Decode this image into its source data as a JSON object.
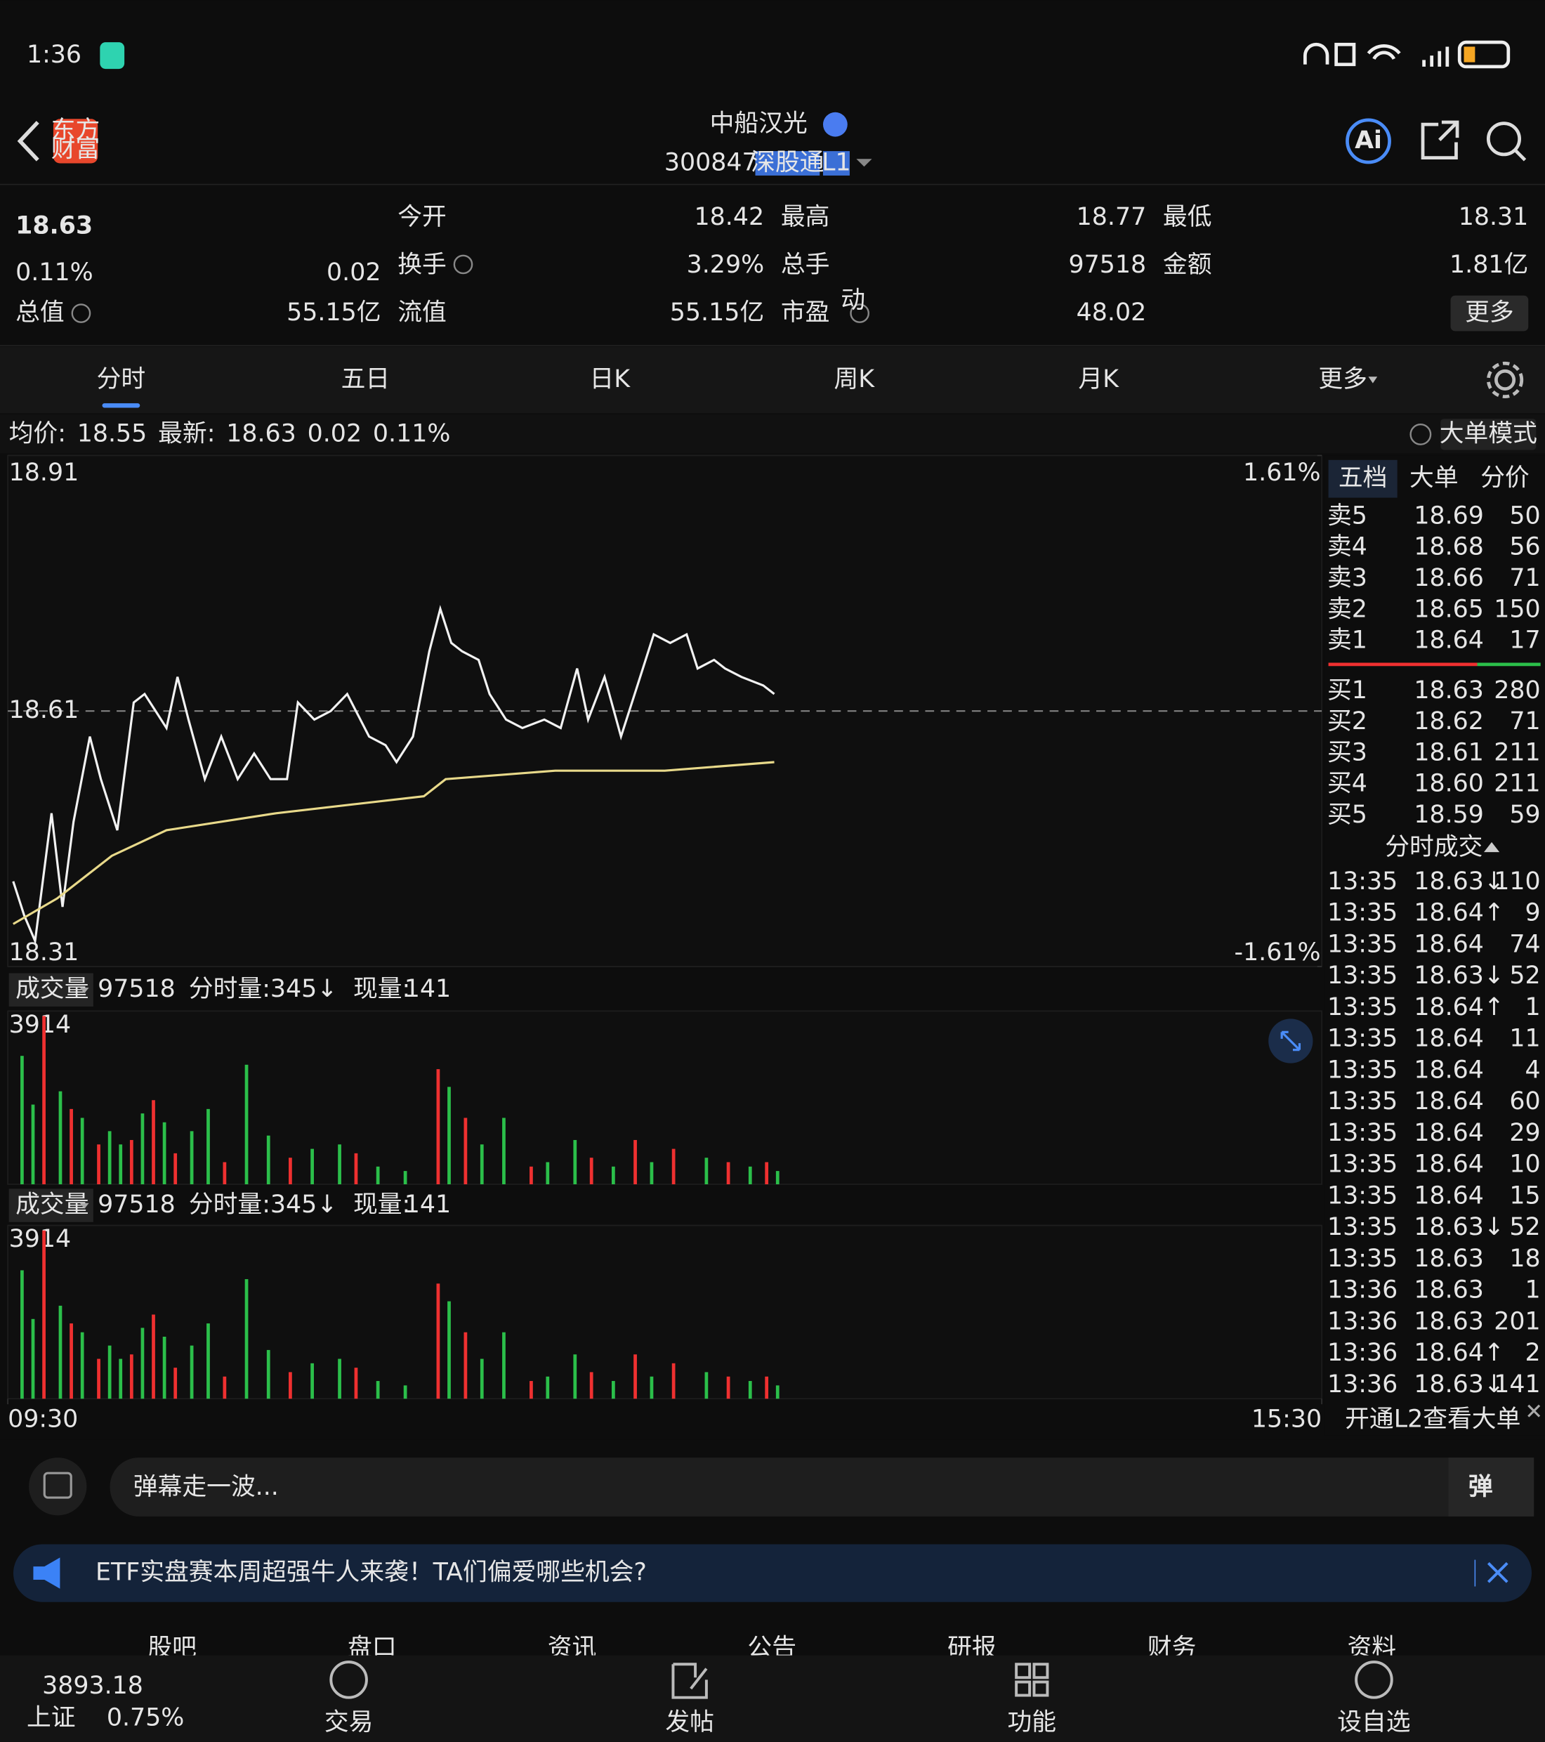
{
  "status_bar": {
    "time": "1:36"
  },
  "header": {
    "logo": [
      "东方",
      "财富"
    ],
    "name": "中船汉光",
    "code": "300847",
    "tag": "深股通",
    "level": "L1",
    "ai": "Ai"
  },
  "quote": {
    "price": "18.63",
    "change_pct": "0.11%",
    "change": "0.02",
    "pe_mark": "动",
    "more": "更多",
    "fields": [
      {
        "label": "今开",
        "value": "18.42",
        "color": "#2bbf4a"
      },
      {
        "label": "最高",
        "value": "18.77",
        "color": "#ef3030"
      },
      {
        "label": "最低",
        "value": "18.31",
        "color": "#2bbf4a"
      },
      {
        "label": "换手",
        "value": "3.29%",
        "color": "#e6e6e6"
      },
      {
        "label": "总手",
        "value": "97518",
        "color": "#e6e6e6"
      },
      {
        "label": "金额",
        "value": "1.81亿",
        "color": "#e6e6e6"
      },
      {
        "label": "总值",
        "value": "55.15亿",
        "color": "#e6e6e6"
      },
      {
        "label": "流值",
        "value": "55.15亿",
        "color": "#e6e6e6"
      },
      {
        "label": "市盈",
        "value": "48.02",
        "color": "#e6e6e6"
      }
    ]
  },
  "tabs": {
    "items": [
      "分时",
      "五日",
      "日K",
      "周K",
      "月K",
      "更多"
    ],
    "active": 0
  },
  "info": {
    "avg_label": "均价:",
    "avg": "18.55",
    "latest_label": "最新:",
    "latest": "18.63",
    "change": "0.02",
    "change_pct": "0.11%",
    "mode": "大单模式"
  },
  "chart_data": [
    {
      "type": "line",
      "ylim": [
        18.31,
        18.91
      ],
      "yticks": [
        18.91,
        18.61,
        18.31
      ],
      "y2lim": [
        -1.61,
        1.61
      ],
      "y2ticks": [
        {
          "value": 1.61,
          "label": "1.61%"
        },
        {
          "value": -1.61,
          "label": "-1.61%"
        }
      ],
      "xlim": [
        0,
        240
      ],
      "xticks": [
        {
          "value": 0,
          "label": "09:30"
        },
        {
          "value": 240,
          "label": "15:30"
        }
      ],
      "series": [
        {
          "color": "#f2f2f2",
          "x": [
            1,
            3,
            5,
            8,
            10,
            12,
            15,
            17,
            20,
            23,
            25,
            27,
            29,
            31,
            33,
            36,
            39,
            42,
            45,
            48,
            51,
            53,
            56,
            59,
            62,
            66,
            69,
            71,
            74,
            77,
            79,
            81,
            83,
            86,
            88,
            91,
            94,
            98,
            101,
            104,
            106,
            109,
            112,
            115,
            118,
            121,
            124,
            126,
            129,
            131,
            134,
            138,
            140
          ],
          "values": [
            18.41,
            18.37,
            18.34,
            18.49,
            18.38,
            18.48,
            18.58,
            18.53,
            18.47,
            18.62,
            18.63,
            18.61,
            18.59,
            18.65,
            18.6,
            18.53,
            18.58,
            18.53,
            18.56,
            18.53,
            18.53,
            18.62,
            18.6,
            18.61,
            18.63,
            18.58,
            18.57,
            18.55,
            18.58,
            18.68,
            18.73,
            18.69,
            18.68,
            18.67,
            18.63,
            18.6,
            18.59,
            18.6,
            18.59,
            18.66,
            18.6,
            18.65,
            18.58,
            18.64,
            18.7,
            18.69,
            18.7,
            18.66,
            18.67,
            18.66,
            18.65,
            18.64,
            18.63
          ]
        },
        {
          "color": "#e8d98a",
          "x": [
            1,
            9,
            19,
            29,
            49,
            76,
            80,
            100,
            120,
            140
          ],
          "values": [
            18.36,
            18.39,
            18.44,
            18.47,
            18.49,
            18.51,
            18.53,
            18.54,
            18.54,
            18.55
          ]
        }
      ]
    },
    {
      "type": "bar",
      "title": "成交量",
      "total": "97518",
      "period_volume": "分时量:345↓",
      "current_label": "现量:",
      "current": "141",
      "ylim": [
        0,
        3914
      ],
      "yticks": [
        3914
      ],
      "xlim": [
        0,
        240
      ],
      "series": [
        {
          "color": "#ef3030",
          "x": [
            6,
            11,
            16,
            22,
            26,
            30,
            39,
            51,
            63,
            78,
            83,
            95,
            106,
            114,
            121,
            131,
            138
          ],
          "values": [
            3800,
            1700,
            900,
            1000,
            1900,
            700,
            500,
            600,
            700,
            2600,
            1500,
            400,
            600,
            1000,
            800,
            500,
            500
          ]
        },
        {
          "color": "#2bbf4a",
          "x": [
            2,
            4,
            9,
            13,
            18,
            20,
            24,
            28,
            33,
            36,
            43,
            47,
            55,
            60,
            67,
            72,
            80,
            86,
            90,
            98,
            103,
            110,
            117,
            127,
            135,
            140
          ],
          "values": [
            2900,
            1800,
            2100,
            1500,
            1200,
            900,
            1600,
            1400,
            1200,
            1700,
            2700,
            1100,
            800,
            900,
            400,
            300,
            2200,
            900,
            1500,
            500,
            1000,
            400,
            500,
            600,
            400,
            300
          ]
        }
      ]
    },
    {
      "type": "bar",
      "title": "成交量",
      "total": "97518",
      "period_volume": "分时量:345↓",
      "current_label": "现量:",
      "current": "141",
      "ylim": [
        0,
        3914
      ],
      "yticks": [
        3914
      ],
      "xlim": [
        0,
        240
      ],
      "series": [
        {
          "color": "#ef3030",
          "x": [
            6,
            11,
            16,
            22,
            26,
            30,
            39,
            51,
            63,
            78,
            83,
            95,
            106,
            114,
            121,
            131,
            138
          ],
          "values": [
            3800,
            1700,
            900,
            1000,
            1900,
            700,
            500,
            600,
            700,
            2600,
            1500,
            400,
            600,
            1000,
            800,
            500,
            500
          ]
        },
        {
          "color": "#2bbf4a",
          "x": [
            2,
            4,
            9,
            13,
            18,
            20,
            24,
            28,
            33,
            36,
            43,
            47,
            55,
            60,
            67,
            72,
            80,
            86,
            90,
            98,
            103,
            110,
            117,
            127,
            135,
            140
          ],
          "values": [
            2900,
            1800,
            2100,
            1500,
            1200,
            900,
            1600,
            1400,
            1200,
            1700,
            2700,
            1100,
            800,
            900,
            400,
            300,
            2200,
            900,
            1500,
            500,
            1000,
            400,
            500,
            600,
            400,
            300
          ]
        }
      ]
    }
  ],
  "order_book": {
    "tabs": [
      "五档",
      "大单",
      "分价"
    ],
    "asks": [
      {
        "label": "卖5",
        "price": "18.69",
        "volume": "50",
        "color": "#ef3030"
      },
      {
        "label": "卖4",
        "price": "18.68",
        "volume": "56",
        "color": "#ef3030"
      },
      {
        "label": "卖3",
        "price": "18.66",
        "volume": "71",
        "color": "#ef3030"
      },
      {
        "label": "卖2",
        "price": "18.65",
        "volume": "150",
        "color": "#ef3030"
      },
      {
        "label": "卖1",
        "price": "18.64",
        "volume": "17",
        "color": "#ef3030"
      }
    ],
    "bids": [
      {
        "label": "买1",
        "price": "18.63",
        "volume": "280",
        "color": "#ef3030"
      },
      {
        "label": "买2",
        "price": "18.62",
        "volume": "71",
        "color": "#ef3030"
      },
      {
        "label": "买3",
        "price": "18.61",
        "volume": "211",
        "color": "#e6e6e6"
      },
      {
        "label": "买4",
        "price": "18.60",
        "volume": "211",
        "color": "#2bbf4a"
      },
      {
        "label": "买5",
        "price": "18.59",
        "volume": "59",
        "color": "#2bbf4a"
      }
    ]
  },
  "trades": {
    "title": "分时成交",
    "footer": "开通L2查看大单",
    "rows": [
      {
        "time": "13:35",
        "price": "18.63↓",
        "volume": "110",
        "color": "#2bbf4a"
      },
      {
        "time": "13:35",
        "price": "18.64↑",
        "volume": "9",
        "color": "#ef3030"
      },
      {
        "time": "13:35",
        "price": "18.64",
        "volume": "74",
        "color": "#ef3030"
      },
      {
        "time": "13:35",
        "price": "18.63↓",
        "volume": "52",
        "color": "#2bbf4a"
      },
      {
        "time": "13:35",
        "price": "18.64↑",
        "volume": "1",
        "color": "#ef3030"
      },
      {
        "time": "13:35",
        "price": "18.64",
        "volume": "11",
        "color": "#ef3030"
      },
      {
        "time": "13:35",
        "price": "18.64",
        "volume": "4",
        "color": "#ef3030"
      },
      {
        "time": "13:35",
        "price": "18.64",
        "volume": "60",
        "color": "#ef3030"
      },
      {
        "time": "13:35",
        "price": "18.64",
        "volume": "29",
        "color": "#ef3030"
      },
      {
        "time": "13:35",
        "price": "18.64",
        "volume": "10",
        "color": "#ef3030"
      },
      {
        "time": "13:35",
        "price": "18.64",
        "volume": "15",
        "color": "#ef3030"
      },
      {
        "time": "13:35",
        "price": "18.63↓",
        "volume": "52",
        "color": "#2bbf4a"
      },
      {
        "time": "13:35",
        "price": "18.63",
        "volume": "18",
        "color": "#2bbf4a"
      },
      {
        "time": "13:36",
        "price": "18.63",
        "volume": "1",
        "color": "#ef3030"
      },
      {
        "time": "13:36",
        "price": "18.63",
        "volume": "201",
        "color": "#2bbf4a"
      },
      {
        "time": "13:36",
        "price": "18.64↑",
        "volume": "2",
        "color": "#ef3030"
      },
      {
        "time": "13:36",
        "price": "18.63↓",
        "volume": "141",
        "color": "#2bbf4a"
      }
    ]
  },
  "comment": {
    "placeholder": "弹幕走一波...",
    "button": "弹"
  },
  "banner": {
    "text": "ETF实盘赛本周超强牛人来袭！TA们偏爱哪些机会?"
  },
  "section_tabs": [
    "股吧",
    "盘口",
    "资讯",
    "公告",
    "研报",
    "财务",
    "资料"
  ],
  "nav": {
    "index_value": "3893.18",
    "index_name": "上证",
    "index_pct": "0.75%",
    "items": [
      "交易",
      "发帖",
      "功能",
      "设自选"
    ]
  }
}
